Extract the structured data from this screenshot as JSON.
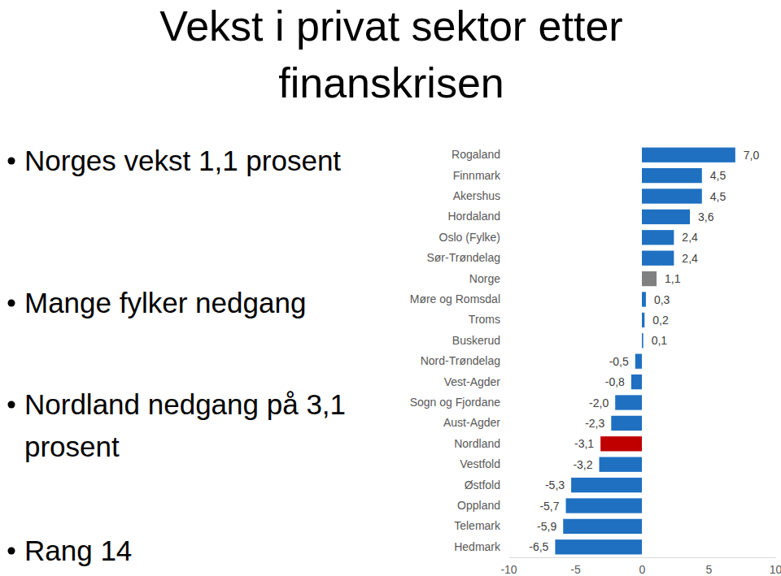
{
  "chart_data": {
    "type": "bar",
    "orientation": "horizontal",
    "title": "Vekst i privat sektor etter finanskrisen",
    "annotations": [
      "Norges vekst 1,1 prosent",
      "Mange fylker nedgang",
      "Nordland nedgang på 3,1 prosent",
      "Rang 14"
    ],
    "categories": [
      "Rogaland",
      "Finnmark",
      "Akershus",
      "Hordaland",
      "Oslo (Fylke)",
      "Sør-Trøndelag",
      "Norge",
      "Møre og Romsdal",
      "Troms",
      "Buskerud",
      "Nord-Trøndelag",
      "Vest-Agder",
      "Sogn og Fjordane",
      "Aust-Agder",
      "Nordland",
      "Vestfold",
      "Østfold",
      "Oppland",
      "Telemark",
      "Hedmark"
    ],
    "values": [
      7.0,
      4.5,
      4.5,
      3.6,
      2.4,
      2.4,
      1.1,
      0.3,
      0.2,
      0.1,
      -0.5,
      -0.8,
      -2.0,
      -2.3,
      -3.1,
      -3.2,
      -5.3,
      -5.7,
      -5.9,
      -6.5
    ],
    "value_labels": [
      "7,0",
      "4,5",
      "4,5",
      "3,6",
      "2,4",
      "2,4",
      "1,1",
      "0,3",
      "0,2",
      "0,1",
      "-0,5",
      "-0,8",
      "-2,0",
      "-2,3",
      "-3,1",
      "-3,2",
      "-5,3",
      "-5,7",
      "-5,9",
      "-6,5"
    ],
    "colors": [
      "#1f70c1",
      "#1f70c1",
      "#1f70c1",
      "#1f70c1",
      "#1f70c1",
      "#1f70c1",
      "#808080",
      "#1f70c1",
      "#1f70c1",
      "#1f70c1",
      "#1f70c1",
      "#1f70c1",
      "#1f70c1",
      "#1f70c1",
      "#c00000",
      "#1f70c1",
      "#1f70c1",
      "#1f70c1",
      "#1f70c1",
      "#1f70c1"
    ],
    "xlim": [
      -10,
      10
    ],
    "xticks": [
      -10,
      -5,
      0,
      5,
      10
    ],
    "data_labels": true,
    "grid": false
  }
}
